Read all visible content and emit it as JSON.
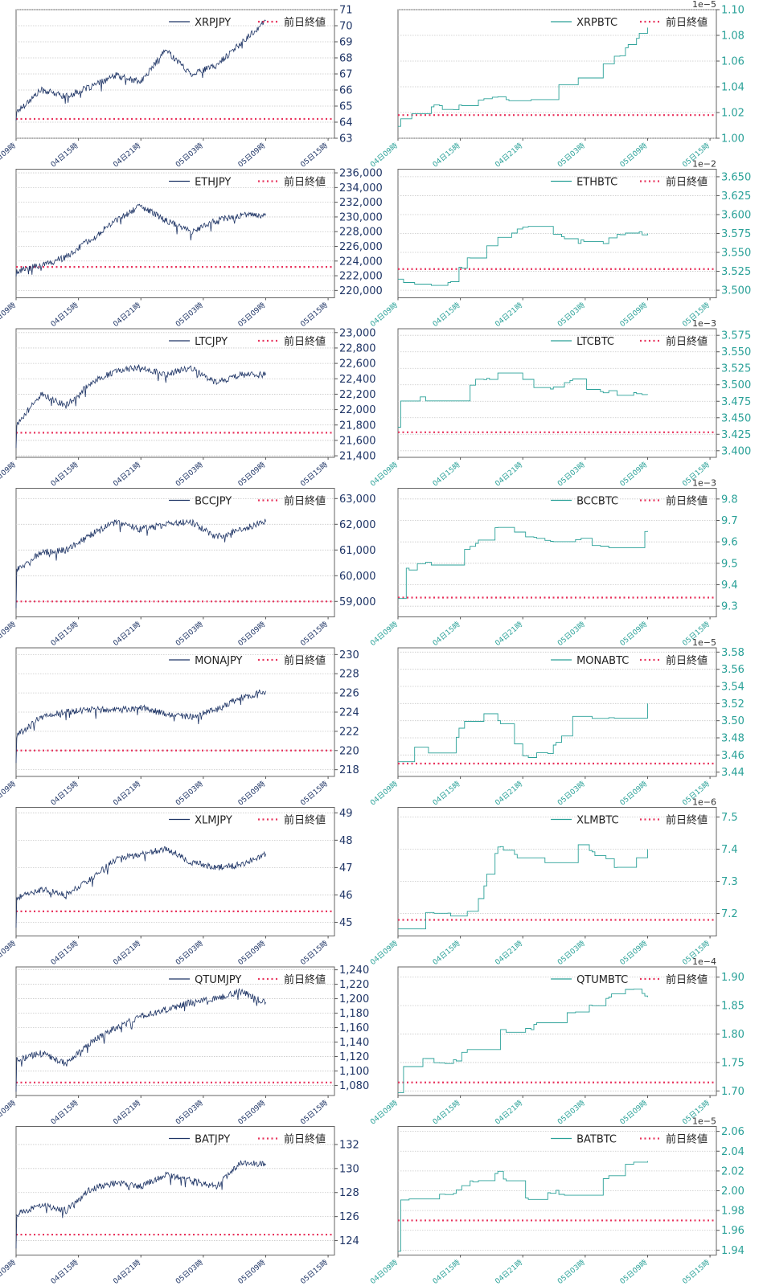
{
  "time_labels": [
    "04日09時",
    "04日15時",
    "04日21時",
    "05日03時",
    "05日09時",
    "05日15時"
  ],
  "legend_ref_label": "前日終値",
  "colors": {
    "jpy_line": "#1f3566",
    "btc_line": "#2aa198",
    "ref_line": "#e8315b",
    "grid": "#c8c8c8",
    "axis_jpy": "#1f3566",
    "axis_btc": "#2aa198"
  },
  "chart_data": [
    {
      "type": "line",
      "title": "XRPJPY",
      "series": [
        {
          "name": "XRPJPY",
          "start": 64.2,
          "end": 70.3,
          "level": [
            64.6,
            66.0,
            65.6,
            66.2,
            66.9,
            66.5,
            68.5,
            67.0,
            67.5,
            68.9,
            70.3
          ]
        },
        {
          "name": "前日終値",
          "value": 64.2
        }
      ],
      "ylim": [
        63,
        71
      ],
      "ticks": [
        63,
        64,
        65,
        66,
        67,
        68,
        69,
        70,
        71
      ],
      "tick_labels": [
        "63",
        "64",
        "65",
        "66",
        "67",
        "68",
        "69",
        "70",
        "71"
      ]
    },
    {
      "type": "line",
      "title": "XRPBTC",
      "exponent_label": "1e−5",
      "series": [
        {
          "name": "XRPBTC",
          "start": 1.01,
          "end": 1.086,
          "level": [
            1.013,
            1.026,
            1.022,
            1.03,
            1.032,
            1.026,
            1.04,
            1.046,
            1.057,
            1.067,
            1.086
          ]
        },
        {
          "name": "前日終値",
          "value": 1.018
        }
      ],
      "ylim": [
        1.0,
        1.1
      ],
      "ticks": [
        1.0,
        1.02,
        1.04,
        1.06,
        1.08,
        1.1
      ],
      "tick_labels": [
        "1.00",
        "1.02",
        "1.04",
        "1.06",
        "1.08",
        "1.10"
      ]
    },
    {
      "type": "line",
      "title": "ETHJPY",
      "series": [
        {
          "name": "ETHJPY",
          "start": 222000,
          "end": 230200,
          "level": [
            222500,
            223500,
            224500,
            227000,
            229500,
            231500,
            229500,
            228000,
            229500,
            230200,
            230200
          ]
        },
        {
          "name": "前日終値",
          "value": 223200
        }
      ],
      "ylim": [
        219000,
        236500
      ],
      "ticks": [
        220000,
        222000,
        224000,
        226000,
        228000,
        230000,
        232000,
        234000,
        236000
      ],
      "tick_labels": [
        "220,000",
        "222,000",
        "224,000",
        "226,000",
        "228,000",
        "230,000",
        "232,000",
        "234,000",
        "236,000"
      ]
    },
    {
      "type": "line",
      "title": "ETHBTC",
      "exponent_label": "1e−2",
      "series": [
        {
          "name": "ETHBTC",
          "start": 3.515,
          "end": 3.575,
          "level": [
            3.51,
            3.505,
            3.51,
            3.55,
            3.57,
            3.585,
            3.575,
            3.565,
            3.56,
            3.575,
            3.575
          ]
        },
        {
          "name": "前日終値",
          "value": 3.528
        }
      ],
      "ylim": [
        3.49,
        3.66
      ],
      "ticks": [
        3.5,
        3.525,
        3.55,
        3.575,
        3.6,
        3.625,
        3.65
      ],
      "tick_labels": [
        "3.500",
        "3.525",
        "3.550",
        "3.575",
        "3.600",
        "3.625",
        "3.650"
      ]
    },
    {
      "type": "line",
      "title": "LTCJPY",
      "series": [
        {
          "name": "LTCJPY",
          "start": 21500,
          "end": 22450,
          "level": [
            21800,
            22200,
            22050,
            22350,
            22500,
            22550,
            22450,
            22550,
            22350,
            22450,
            22450
          ]
        },
        {
          "name": "前日終値",
          "value": 21700
        }
      ],
      "ylim": [
        21380,
        23050
      ],
      "ticks": [
        21400,
        21600,
        21800,
        22000,
        22200,
        22400,
        22600,
        22800,
        23000
      ],
      "tick_labels": [
        "21,400",
        "21,600",
        "21,800",
        "22,000",
        "22,200",
        "22,400",
        "22,600",
        "22,800",
        "23,000"
      ]
    },
    {
      "type": "line",
      "title": "LTCBTC",
      "exponent_label": "1e−3",
      "series": [
        {
          "name": "LTCBTC",
          "start": 3.435,
          "end": 3.485,
          "level": [
            3.475,
            3.48,
            3.455,
            3.505,
            3.515,
            3.505,
            3.49,
            3.505,
            3.49,
            3.485,
            3.485
          ]
        },
        {
          "name": "前日終値",
          "value": 3.428
        }
      ],
      "ylim": [
        3.39,
        3.585
      ],
      "ticks": [
        3.4,
        3.425,
        3.45,
        3.475,
        3.5,
        3.525,
        3.55,
        3.575
      ],
      "tick_labels": [
        "3.400",
        "3.425",
        "3.450",
        "3.475",
        "3.500",
        "3.525",
        "3.550",
        "3.575"
      ]
    },
    {
      "type": "line",
      "title": "BCCJPY",
      "series": [
        {
          "name": "BCCJPY",
          "start": 58700,
          "end": 62100,
          "level": [
            60200,
            60900,
            61000,
            61600,
            62100,
            61800,
            62000,
            62100,
            61500,
            61800,
            62100
          ]
        },
        {
          "name": "前日終値",
          "value": 59000
        }
      ],
      "ylim": [
        58400,
        63400
      ],
      "ticks": [
        59000,
        60000,
        61000,
        62000,
        63000
      ],
      "tick_labels": [
        "59,000",
        "60,000",
        "61,000",
        "62,000",
        "63,000"
      ]
    },
    {
      "type": "line",
      "title": "BCCBTC",
      "exponent_label": "1e−3",
      "series": [
        {
          "name": "BCCBTC",
          "start": 9.33,
          "end": 9.65,
          "level": [
            9.45,
            9.5,
            9.5,
            9.58,
            9.67,
            9.63,
            9.6,
            9.62,
            9.58,
            9.56,
            9.65
          ]
        },
        {
          "name": "前日終値",
          "value": 9.34
        }
      ],
      "ylim": [
        9.25,
        9.85
      ],
      "ticks": [
        9.3,
        9.4,
        9.5,
        9.6,
        9.7,
        9.8
      ],
      "tick_labels": [
        "9.3",
        "9.4",
        "9.5",
        "9.6",
        "9.7",
        "9.8"
      ]
    },
    {
      "type": "line",
      "title": "MONAJPY",
      "series": [
        {
          "name": "MONAJPY",
          "start": 218.5,
          "end": 226.2,
          "level": [
            221.5,
            223.5,
            224.0,
            224.3,
            224.2,
            224.5,
            223.8,
            223.5,
            224.2,
            225.5,
            226.2
          ]
        },
        {
          "name": "前日終値",
          "value": 220.0
        }
      ],
      "ylim": [
        217.3,
        230.7
      ],
      "ticks": [
        218,
        220,
        222,
        224,
        226,
        228,
        230
      ],
      "tick_labels": [
        "218",
        "220",
        "222",
        "224",
        "226",
        "228",
        "230"
      ]
    },
    {
      "type": "line",
      "title": "MONABTC",
      "exponent_label": "1e−5",
      "series": [
        {
          "name": "MONABTC",
          "start": 3.45,
          "end": 3.52,
          "level": [
            3.48,
            3.465,
            3.465,
            3.52,
            3.5,
            3.46,
            3.46,
            3.505,
            3.505,
            3.505,
            3.52
          ]
        },
        {
          "name": "前日終値",
          "value": 3.45
        }
      ],
      "ylim": [
        3.435,
        3.585
      ],
      "ticks": [
        3.44,
        3.46,
        3.48,
        3.5,
        3.52,
        3.54,
        3.56,
        3.58
      ],
      "tick_labels": [
        "3.44",
        "3.46",
        "3.48",
        "3.50",
        "3.52",
        "3.54",
        "3.56",
        "3.58"
      ]
    },
    {
      "type": "line",
      "title": "XLMJPY",
      "series": [
        {
          "name": "XLMJPY",
          "start": 44.7,
          "end": 47.5,
          "level": [
            45.9,
            46.2,
            46.0,
            46.6,
            47.3,
            47.5,
            47.7,
            47.2,
            47.0,
            47.1,
            47.5
          ]
        },
        {
          "name": "前日終値",
          "value": 45.4
        }
      ],
      "ylim": [
        44.5,
        49.2
      ],
      "ticks": [
        45,
        46,
        47,
        48,
        49
      ],
      "tick_labels": [
        "45",
        "46",
        "47",
        "48",
        "49"
      ]
    },
    {
      "type": "line",
      "title": "XLMBTC",
      "exponent_label": "1e−6",
      "series": [
        {
          "name": "XLMBTC",
          "start": 7.16,
          "end": 7.4,
          "level": [
            7.2,
            7.2,
            7.2,
            7.2,
            7.41,
            7.36,
            7.36,
            7.42,
            7.38,
            7.33,
            7.4
          ]
        },
        {
          "name": "前日終値",
          "value": 7.18
        }
      ],
      "ylim": [
        7.13,
        7.53
      ],
      "ticks": [
        7.2,
        7.3,
        7.4,
        7.5
      ],
      "tick_labels": [
        "7.2",
        "7.3",
        "7.4",
        "7.5"
      ]
    },
    {
      "type": "line",
      "title": "QTUMJPY",
      "series": [
        {
          "name": "QTUMJPY",
          "start": 1075,
          "end": 1195,
          "level": [
            1115,
            1125,
            1110,
            1140,
            1160,
            1175,
            1185,
            1195,
            1200,
            1210,
            1195
          ]
        },
        {
          "name": "前日終値",
          "value": 1084
        }
      ],
      "ylim": [
        1066,
        1244
      ],
      "ticks": [
        1080,
        1100,
        1120,
        1140,
        1160,
        1180,
        1200,
        1220,
        1240
      ],
      "tick_labels": [
        "1,080",
        "1,100",
        "1,120",
        "1,140",
        "1,160",
        "1,180",
        "1,200",
        "1,220",
        "1,240"
      ]
    },
    {
      "type": "line",
      "title": "QTUMBTC",
      "exponent_label": "1e−4",
      "series": [
        {
          "name": "QTUMBTC",
          "start": 1.7,
          "end": 1.865,
          "level": [
            1.745,
            1.755,
            1.745,
            1.78,
            1.805,
            1.805,
            1.825,
            1.84,
            1.85,
            1.885,
            1.865
          ]
        },
        {
          "name": "前日終値",
          "value": 1.715
        }
      ],
      "ylim": [
        1.692,
        1.918
      ],
      "ticks": [
        1.7,
        1.75,
        1.8,
        1.85,
        1.9
      ],
      "tick_labels": [
        "1.70",
        "1.75",
        "1.80",
        "1.85",
        "1.90"
      ]
    },
    {
      "type": "line",
      "title": "BATJPY",
      "series": [
        {
          "name": "BATJPY",
          "start": 123.5,
          "end": 130.4,
          "level": [
            126.2,
            127.0,
            126.5,
            128.3,
            128.8,
            128.5,
            129.5,
            129.0,
            128.5,
            130.5,
            130.4
          ]
        },
        {
          "name": "前日終値",
          "value": 124.5
        }
      ],
      "ylim": [
        122.8,
        133.5
      ],
      "ticks": [
        124,
        126,
        128,
        130,
        132
      ],
      "tick_labels": [
        "124",
        "126",
        "128",
        "130",
        "132"
      ]
    },
    {
      "type": "line",
      "title": "BATBTC",
      "exponent_label": "1e−5",
      "series": [
        {
          "name": "BATBTC",
          "start": 1.94,
          "end": 2.03,
          "level": [
            1.99,
            1.995,
            1.995,
            2.01,
            2.02,
            1.99,
            2.0,
            1.995,
            2.01,
            2.025,
            2.03
          ]
        },
        {
          "name": "前日終値",
          "value": 1.97
        }
      ],
      "ylim": [
        1.935,
        2.065
      ],
      "ticks": [
        1.94,
        1.96,
        1.98,
        2.0,
        2.02,
        2.04,
        2.06
      ],
      "tick_labels": [
        "1.94",
        "1.96",
        "1.98",
        "2.00",
        "2.02",
        "2.04",
        "2.06"
      ]
    }
  ]
}
